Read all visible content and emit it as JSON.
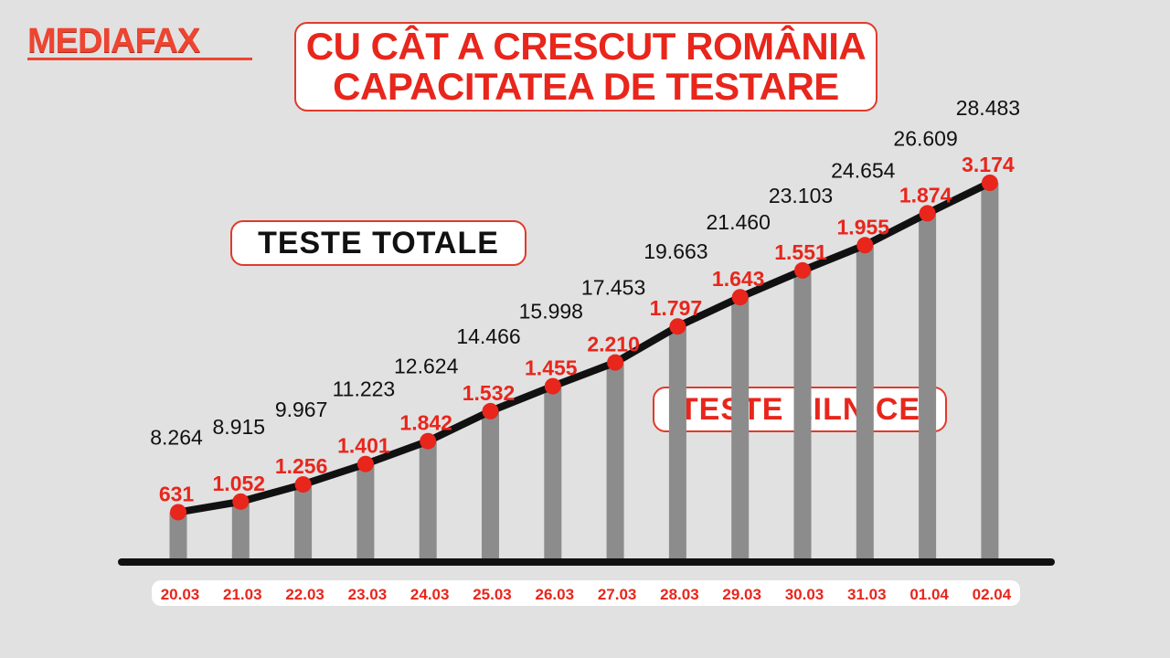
{
  "logo": {
    "text": "MEDIAFAX"
  },
  "title": {
    "line1": "CU CÂT A CRESCUT ROMÂNIA",
    "line2": "CAPACITATEA DE TESTARE"
  },
  "labels": {
    "total": "TESTE TOTALE",
    "daily": "TESTE ZILNICE"
  },
  "colors": {
    "accent": "#e8261c",
    "bar": "#8c8c8c",
    "line": "#111111",
    "background": "#e1e1e1"
  },
  "chart_data": {
    "type": "bar",
    "categories": [
      "20.03",
      "21.03",
      "22.03",
      "23.03",
      "24.03",
      "25.03",
      "26.03",
      "27.03",
      "28.03",
      "29.03",
      "30.03",
      "31.03",
      "01.04",
      "02.04"
    ],
    "series": [
      {
        "name": "TESTE TOTALE",
        "values": [
          8264,
          8915,
          9967,
          11223,
          12624,
          14466,
          15998,
          17453,
          19663,
          21460,
          23103,
          24654,
          26609,
          28483
        ],
        "labels": [
          "8.264",
          "8.915",
          "9.967",
          "11.223",
          "12.624",
          "14.466",
          "15.998",
          "17.453",
          "19.663",
          "21.460",
          "23.103",
          "24.654",
          "26.609",
          "28.483"
        ]
      },
      {
        "name": "TESTE ZILNICE",
        "values": [
          631,
          1052,
          1256,
          1401,
          1842,
          1532,
          1455,
          2210,
          1797,
          1643,
          1551,
          1955,
          1874,
          3174
        ],
        "labels": [
          "631",
          "1.052",
          "1.256",
          "1.401",
          "1.842",
          "1.532",
          "1.455",
          "2.210",
          "1.797",
          "1.643",
          "1.551",
          "1.955",
          "1.874",
          "3.174"
        ]
      }
    ],
    "ylim": [
      7000,
      28483
    ]
  }
}
